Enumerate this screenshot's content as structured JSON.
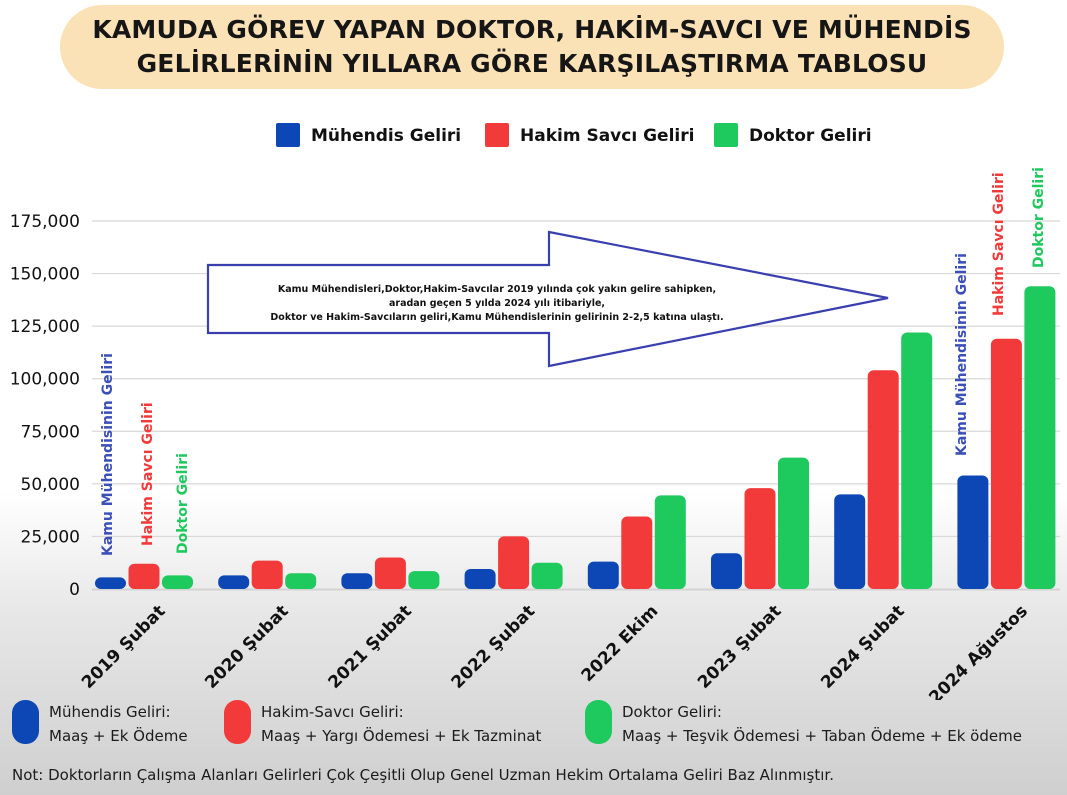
{
  "title": {
    "line1": "KAMUDA GÖREV YAPAN DOKTOR, HAKİM-SAVCI VE MÜHENDİS",
    "line2": "GELİRLERİNİN YILLARA GÖRE KARŞILAŞTIRMA TABLOSU"
  },
  "colors": {
    "muhendis": "#0c47b5",
    "hakim": "#f23a3a",
    "doktor": "#1ec95e",
    "arrow": "#3a3fb0",
    "label_blue": "#3b4fb8"
  },
  "chart_data": {
    "type": "bar",
    "categories": [
      "2019 Şubat",
      "2020 Şubat",
      "2021 Şubat",
      "2022 Şubat",
      "2022 Ekim",
      "2023 Şubat",
      "2024 Şubat",
      "2024 Ağustos"
    ],
    "series": [
      {
        "name": "Mühendis Geliri",
        "values": [
          5500,
          6500,
          7500,
          9500,
          13000,
          17000,
          45000,
          54000
        ]
      },
      {
        "name": "Hakim Savcı Geliri",
        "values": [
          12000,
          13500,
          15000,
          25000,
          34500,
          48000,
          104000,
          119000
        ]
      },
      {
        "name": "Doktor Geliri",
        "values": [
          6500,
          7500,
          8500,
          12500,
          44500,
          62500,
          122000,
          144000
        ]
      }
    ],
    "yticks": [
      "0",
      "25,000",
      "50,000",
      "75,000",
      "100,000",
      "125,000",
      "150,000",
      "175,000"
    ],
    "ylim": [
      0,
      175000
    ],
    "legend_position": "top"
  },
  "annotations": {
    "first_group": [
      "Kamu Mühendisinin Geliri",
      "Hakim Savcı Geliri",
      "Doktor Geliri"
    ],
    "last_group": [
      "Kamu Mühendisinin Geliri",
      "Hakim Savcı Geliri",
      "Doktor Geliri"
    ],
    "arrow_text": [
      "Kamu Mühendisleri,Doktor,Hakim-Savcılar 2019 yılında çok yakın gelire sahipken,",
      "aradan geçen 5 yılda 2024 yılı itibariyle,",
      "Doktor ve Hakim-Savcıların geliri,Kamu Mühendislerinin gelirinin 2-2,5 katına ulaştı."
    ]
  },
  "legend_desc": [
    {
      "title": "Mühendis Geliri:",
      "detail": "Maaş  +  Ek Ödeme"
    },
    {
      "title": "Hakim-Savcı Geliri:",
      "detail": "Maaş + Yargı Ödemesi + Ek Tazminat"
    },
    {
      "title": "Doktor Geliri:",
      "detail": "Maaş + Teşvik Ödemesi + Taban Ödeme + Ek ödeme"
    }
  ],
  "note": "Not: Doktorların Çalışma Alanları Gelirleri Çok Çeşitli Olup Genel Uzman Hekim Ortalama Geliri Baz Alınmıştır."
}
